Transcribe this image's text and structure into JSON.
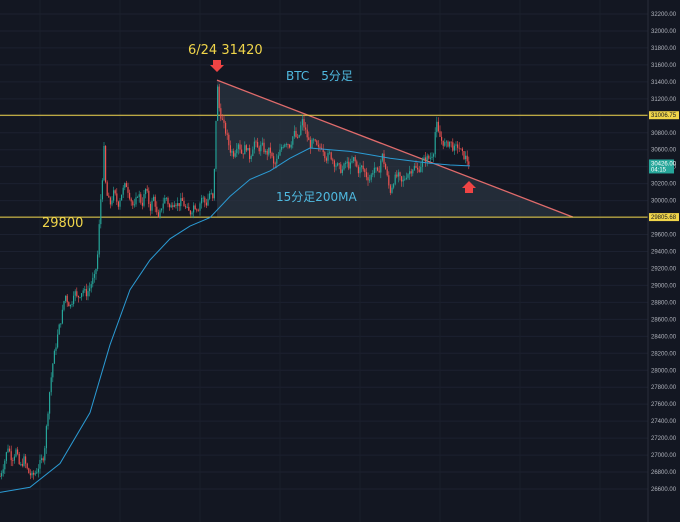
{
  "chart_data": {
    "type": "candlestick",
    "title": "BTC　5分足",
    "ylim": [
      26490,
      32300
    ],
    "y_ticks": [
      32200,
      32000,
      31800,
      31600,
      31400,
      31200,
      31000,
      30800,
      30600,
      30400,
      30200,
      30000,
      29800,
      29600,
      29400,
      29200,
      29000,
      28800,
      28600,
      28400,
      28200,
      28000,
      27800,
      27600,
      27400,
      27200,
      27000,
      26800,
      26600
    ],
    "y_tick_labels": [
      "32200.00",
      "32000.00",
      "31800.00",
      "31600.00",
      "31400.00",
      "31200.00",
      "31000.00",
      "30800.00",
      "30600.00",
      "30400.00",
      "30200.00",
      "30000.00",
      "29800.00",
      "29600.00",
      "29400.00",
      "29200.00",
      "29000.00",
      "28800.00",
      "28600.00",
      "28400.00",
      "28200.00",
      "28000.00",
      "27800.00",
      "27600.00",
      "27400.00",
      "27200.00",
      "27000.00",
      "26800.00",
      "26600.00"
    ],
    "price_path": [
      [
        0,
        26750
      ],
      [
        4,
        26900
      ],
      [
        8,
        27100
      ],
      [
        12,
        26950
      ],
      [
        16,
        27050
      ],
      [
        20,
        26850
      ],
      [
        24,
        26950
      ],
      [
        28,
        26800
      ],
      [
        32,
        26750
      ],
      [
        36,
        26800
      ],
      [
        40,
        26900
      ],
      [
        44,
        27000
      ],
      [
        47,
        27400
      ],
      [
        50,
        27800
      ],
      [
        53,
        28100
      ],
      [
        56,
        28300
      ],
      [
        59,
        28500
      ],
      [
        62,
        28650
      ],
      [
        65,
        28900
      ],
      [
        68,
        28800
      ],
      [
        71,
        28750
      ],
      [
        74,
        28950
      ],
      [
        77,
        28850
      ],
      [
        80,
        28900
      ],
      [
        83,
        28950
      ],
      [
        86,
        28900
      ],
      [
        89,
        28950
      ],
      [
        92,
        29050
      ],
      [
        95,
        29100
      ],
      [
        98,
        29400
      ],
      [
        100,
        29900
      ],
      [
        102,
        30200
      ],
      [
        104,
        30600
      ],
      [
        106,
        30100
      ],
      [
        110,
        29950
      ],
      [
        114,
        30100
      ],
      [
        118,
        29950
      ],
      [
        122,
        30100
      ],
      [
        126,
        30200
      ],
      [
        130,
        30050
      ],
      [
        134,
        29900
      ],
      [
        138,
        30100
      ],
      [
        142,
        29950
      ],
      [
        146,
        30150
      ],
      [
        150,
        29900
      ],
      [
        154,
        30050
      ],
      [
        158,
        29750
      ],
      [
        162,
        29950
      ],
      [
        166,
        30050
      ],
      [
        170,
        29900
      ],
      [
        174,
        30000
      ],
      [
        178,
        29950
      ],
      [
        182,
        30000
      ],
      [
        186,
        29900
      ],
      [
        190,
        29850
      ],
      [
        194,
        29950
      ],
      [
        198,
        29900
      ],
      [
        202,
        30050
      ],
      [
        206,
        29950
      ],
      [
        210,
        30100
      ],
      [
        213,
        30000
      ],
      [
        215,
        30500
      ],
      [
        217,
        31420
      ],
      [
        219,
        31100
      ],
      [
        222,
        30950
      ],
      [
        226,
        30800
      ],
      [
        230,
        30600
      ],
      [
        234,
        30550
      ],
      [
        238,
        30700
      ],
      [
        242,
        30550
      ],
      [
        246,
        30650
      ],
      [
        250,
        30500
      ],
      [
        254,
        30700
      ],
      [
        258,
        30600
      ],
      [
        262,
        30650
      ],
      [
        266,
        30550
      ],
      [
        270,
        30600
      ],
      [
        274,
        30400
      ],
      [
        278,
        30500
      ],
      [
        282,
        30650
      ],
      [
        286,
        30700
      ],
      [
        290,
        30650
      ],
      [
        294,
        30800
      ],
      [
        298,
        30700
      ],
      [
        302,
        30950
      ],
      [
        306,
        30800
      ],
      [
        310,
        30650
      ],
      [
        314,
        30700
      ],
      [
        318,
        30600
      ],
      [
        322,
        30650
      ],
      [
        326,
        30500
      ],
      [
        330,
        30550
      ],
      [
        334,
        30450
      ],
      [
        338,
        30400
      ],
      [
        342,
        30350
      ],
      [
        346,
        30450
      ],
      [
        350,
        30400
      ],
      [
        354,
        30500
      ],
      [
        358,
        30350
      ],
      [
        362,
        30400
      ],
      [
        366,
        30300
      ],
      [
        370,
        30250
      ],
      [
        374,
        30400
      ],
      [
        378,
        30300
      ],
      [
        382,
        30550
      ],
      [
        386,
        30350
      ],
      [
        390,
        30100
      ],
      [
        394,
        30250
      ],
      [
        398,
        30300
      ],
      [
        402,
        30200
      ],
      [
        406,
        30300
      ],
      [
        410,
        30350
      ],
      [
        414,
        30400
      ],
      [
        418,
        30350
      ],
      [
        422,
        30450
      ],
      [
        426,
        30500
      ],
      [
        430,
        30500
      ],
      [
        434,
        30600
      ],
      [
        436,
        30950
      ],
      [
        438,
        30800
      ],
      [
        442,
        30700
      ],
      [
        446,
        30650
      ],
      [
        450,
        30700
      ],
      [
        454,
        30600
      ],
      [
        458,
        30650
      ],
      [
        462,
        30550
      ],
      [
        466,
        30500
      ],
      [
        470,
        30420
      ]
    ],
    "ma_label": "15分足200MA",
    "ma_path": [
      [
        0,
        26560
      ],
      [
        30,
        26620
      ],
      [
        60,
        26900
      ],
      [
        90,
        27500
      ],
      [
        110,
        28300
      ],
      [
        130,
        28950
      ],
      [
        150,
        29300
      ],
      [
        170,
        29550
      ],
      [
        190,
        29700
      ],
      [
        210,
        29800
      ],
      [
        230,
        30050
      ],
      [
        250,
        30250
      ],
      [
        270,
        30350
      ],
      [
        290,
        30500
      ],
      [
        310,
        30620
      ],
      [
        330,
        30600
      ],
      [
        350,
        30580
      ],
      [
        370,
        30540
      ],
      [
        390,
        30500
      ],
      [
        410,
        30470
      ],
      [
        430,
        30440
      ],
      [
        450,
        30420
      ],
      [
        470,
        30410
      ]
    ],
    "horizontal_lines": [
      {
        "value": 31006.75,
        "label": "31006.75"
      },
      {
        "value": 29805.68,
        "label": "29805.68"
      }
    ],
    "current_price": {
      "label": "30426.00",
      "sublabel": "04:15"
    },
    "triangle": {
      "apex_x": 217,
      "apex_value": 31420,
      "end_x": 573,
      "end_value": 29805.68,
      "base_value": 29805.68
    },
    "annotations": [
      {
        "text": "6/24 31420",
        "color": "#f0d54a"
      },
      {
        "text": "BTC　5分足",
        "color": "#4fb9df"
      },
      {
        "text": "15分足200MA",
        "color": "#4fb9df"
      },
      {
        "text": "29800",
        "color": "#f0d54a"
      }
    ],
    "colors": {
      "background": "#131722",
      "up": "#26a69a",
      "down": "#ef5350",
      "ma": "#2b9bd4",
      "hline": "#f0d54a",
      "triangle_fill": "#2a3440",
      "triangle_stroke": "#e06b6b",
      "current_price": "#26a69a"
    }
  }
}
